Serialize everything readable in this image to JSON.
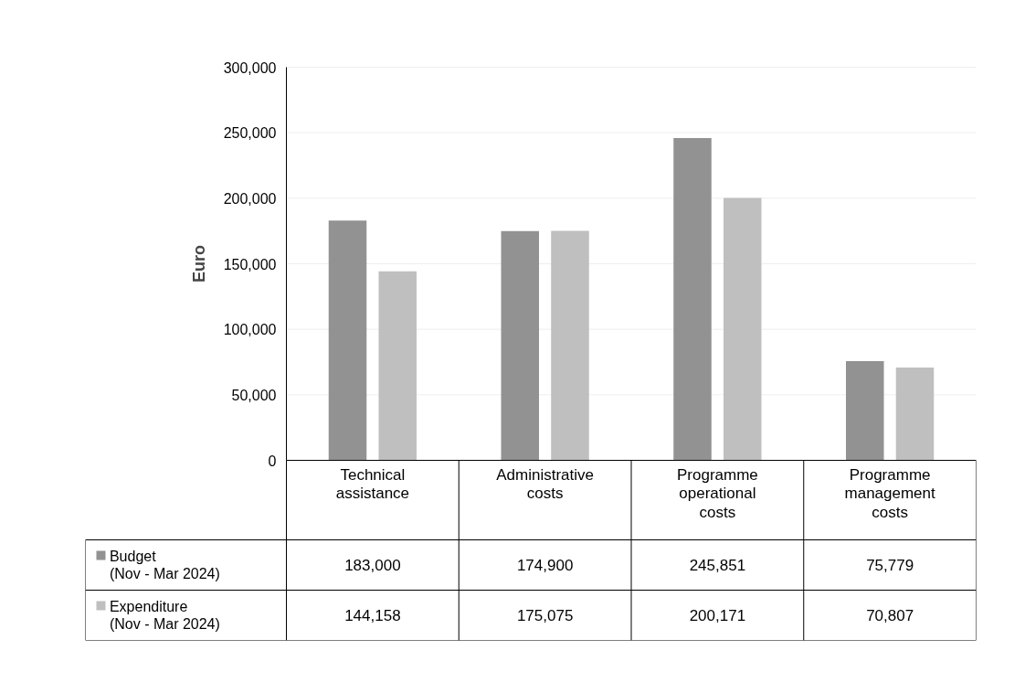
{
  "chart_data": {
    "type": "bar",
    "ylabel": "Euro",
    "categories": [
      "Technical assistance",
      "Administrative costs",
      "Programme operational costs",
      "Programme management costs"
    ],
    "series": [
      {
        "name": "Budget\n(Nov  - Mar 2024)",
        "color": "#929292",
        "values": [
          183000,
          174900,
          245851,
          75779
        ],
        "value_labels": [
          "183,000",
          "174,900",
          "245,851",
          "75,779"
        ]
      },
      {
        "name": "Expenditure\n(Nov - Mar 2024)",
        "color": "#bfbfbf",
        "values": [
          144158,
          175075,
          200171,
          70807
        ],
        "value_labels": [
          "144,158",
          "175,075",
          "200,171",
          "70,807"
        ]
      }
    ],
    "ylim": [
      0,
      300000
    ],
    "yticks": [
      {
        "value": 0,
        "label": "0"
      },
      {
        "value": 50000,
        "label": "50,000"
      },
      {
        "value": 100000,
        "label": "100,000"
      },
      {
        "value": 150000,
        "label": "150,000"
      },
      {
        "value": 200000,
        "label": "200,000"
      },
      {
        "value": 250000,
        "label": "250,000"
      },
      {
        "value": 300000,
        "label": "300,000"
      }
    ],
    "grid": "y",
    "legend": "bottom"
  }
}
